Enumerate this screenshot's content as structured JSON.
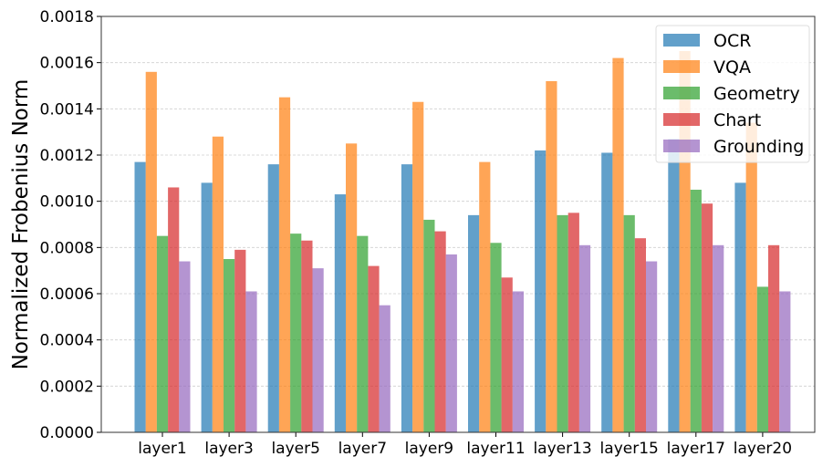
{
  "chart_data": {
    "type": "bar",
    "title": "",
    "xlabel": "",
    "ylabel": "Normalized Frobenius Norm",
    "ylim": [
      0,
      0.0018
    ],
    "yticks": [
      "0.0000",
      "0.0002",
      "0.0004",
      "0.0006",
      "0.0008",
      "0.0010",
      "0.0012",
      "0.0014",
      "0.0016",
      "0.0018"
    ],
    "grid": "horizontal dashed",
    "legend_position": "top-right",
    "categories": [
      "layer1",
      "layer3",
      "layer5",
      "layer7",
      "layer9",
      "layer11",
      "layer13",
      "layer15",
      "layer17",
      "layer20"
    ],
    "series": [
      {
        "name": "OCR",
        "color": "#1f77b4",
        "values": [
          0.00117,
          0.00108,
          0.00116,
          0.00103,
          0.00116,
          0.00094,
          0.00122,
          0.00121,
          0.00127,
          0.00108
        ]
      },
      {
        "name": "VQA",
        "color": "#ff7f0e",
        "values": [
          0.00156,
          0.00128,
          0.00145,
          0.00125,
          0.00143,
          0.00117,
          0.00152,
          0.00162,
          0.00165,
          0.00134
        ]
      },
      {
        "name": "Geometry",
        "color": "#2ca02c",
        "values": [
          0.00085,
          0.00075,
          0.00086,
          0.00085,
          0.00092,
          0.00082,
          0.00094,
          0.00094,
          0.00105,
          0.00063
        ]
      },
      {
        "name": "Chart",
        "color": "#d62728",
        "values": [
          0.00106,
          0.00079,
          0.00083,
          0.00072,
          0.00087,
          0.00067,
          0.00095,
          0.00084,
          0.00099,
          0.00081
        ]
      },
      {
        "name": "Grounding",
        "color": "#9467bd",
        "values": [
          0.00074,
          0.00061,
          0.00071,
          0.00055,
          0.00077,
          0.00061,
          0.00081,
          0.00074,
          0.00081,
          0.00061
        ]
      }
    ]
  }
}
